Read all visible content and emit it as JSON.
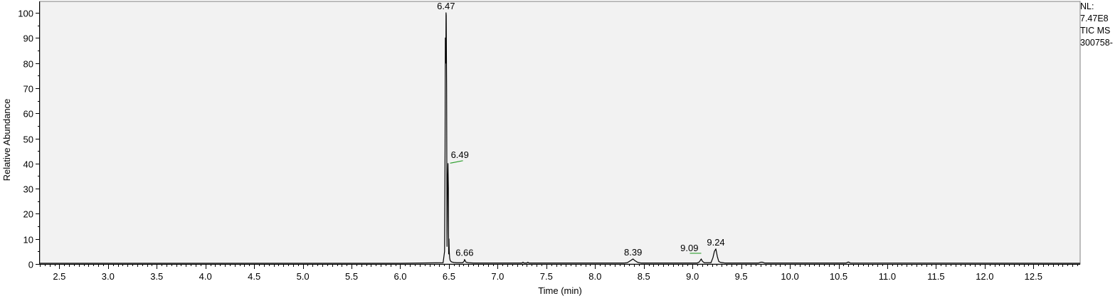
{
  "info_panel": {
    "nl_label": "NL:",
    "nl_value": "7.47E8",
    "trace_label": "TIC  MS",
    "file_name": "300758-"
  },
  "chart_data": {
    "type": "line",
    "title": "",
    "xlabel": "Time (min)",
    "ylabel": "Relative Abundance",
    "xlim": [
      2.3,
      12.98
    ],
    "ylim": [
      0,
      100
    ],
    "grid": false,
    "x_major_ticks": [
      2.5,
      3.0,
      3.5,
      4.0,
      4.5,
      5.0,
      5.5,
      6.0,
      6.5,
      7.0,
      7.5,
      8.0,
      8.5,
      9.0,
      9.5,
      10.0,
      10.5,
      11.0,
      11.5,
      12.0,
      12.5
    ],
    "x_tick_labels": [
      "2.5",
      "3.0",
      "3.5",
      "4.0",
      "4.5",
      "5.0",
      "5.5",
      "6.0",
      "6.5",
      "7.0",
      "7.5",
      "8.0",
      "8.5",
      "9.0",
      "9.5",
      "10.0",
      "10.5",
      "11.0",
      "11.5",
      "12.0",
      "12.5"
    ],
    "y_major_ticks": [
      0,
      10,
      20,
      30,
      40,
      50,
      60,
      70,
      80,
      90,
      100
    ],
    "y_tick_labels": [
      "0",
      "10",
      "20",
      "30",
      "40",
      "50",
      "60",
      "70",
      "80",
      "90",
      "100"
    ],
    "colors": {
      "plot_background": "#f2f2f2",
      "trace": "#000000",
      "label_leader": "#2e9e2e"
    },
    "series": [
      {
        "x": [
          2.3,
          6.0,
          6.44,
          6.455,
          6.46,
          6.463,
          6.468,
          6.47,
          6.472,
          6.476,
          6.48,
          6.483,
          6.486,
          6.49,
          6.494,
          6.497,
          6.5,
          6.503,
          6.507,
          6.512,
          6.52,
          6.53,
          6.55,
          6.58,
          6.6,
          6.64,
          6.655,
          6.66,
          6.665,
          6.675,
          6.7,
          6.75,
          7.25,
          7.26,
          7.27,
          7.3,
          7.31,
          7.32,
          7.33,
          8.3,
          8.33,
          8.37,
          8.39,
          8.41,
          8.44,
          8.47,
          9.05,
          9.07,
          9.09,
          9.1,
          9.12,
          9.19,
          9.21,
          9.225,
          9.24,
          9.255,
          9.27,
          9.29,
          9.33,
          9.68,
          9.7,
          9.72,
          9.74,
          10.58,
          10.6,
          10.62,
          12.98
        ],
        "y": [
          0.3,
          0.3,
          0.5,
          5,
          45,
          90,
          80,
          100,
          99,
          70,
          7,
          20,
          33,
          40,
          30,
          4,
          10,
          5,
          2.5,
          1.5,
          1,
          0.8,
          0.6,
          0.5,
          0.5,
          0.5,
          1,
          1.8,
          1.5,
          0.7,
          0.5,
          0.4,
          0.4,
          0.7,
          0.4,
          0.4,
          0.7,
          0.4,
          0.4,
          0.4,
          0.5,
          1.5,
          2,
          1.3,
          0.6,
          0.4,
          0.4,
          0.8,
          2,
          1.2,
          0.5,
          0.5,
          2.5,
          5,
          6,
          3,
          1,
          0.6,
          0.4,
          0.4,
          0.7,
          0.7,
          0.4,
          0.4,
          0.8,
          0.4,
          0.3
        ]
      }
    ],
    "peak_labels": [
      {
        "text": "6.47",
        "x": 6.47,
        "y": 100,
        "leader": false
      },
      {
        "text": "6.49",
        "x": 6.49,
        "y": 40,
        "leader": true
      },
      {
        "text": "6.66",
        "x": 6.66,
        "y": 1.8,
        "leader": false
      },
      {
        "text": "8.39",
        "x": 8.39,
        "y": 2,
        "leader": false
      },
      {
        "text": "9.09",
        "x": 9.09,
        "y": 2,
        "leader": true
      },
      {
        "text": "9.24",
        "x": 9.24,
        "y": 6,
        "leader": false
      }
    ]
  }
}
